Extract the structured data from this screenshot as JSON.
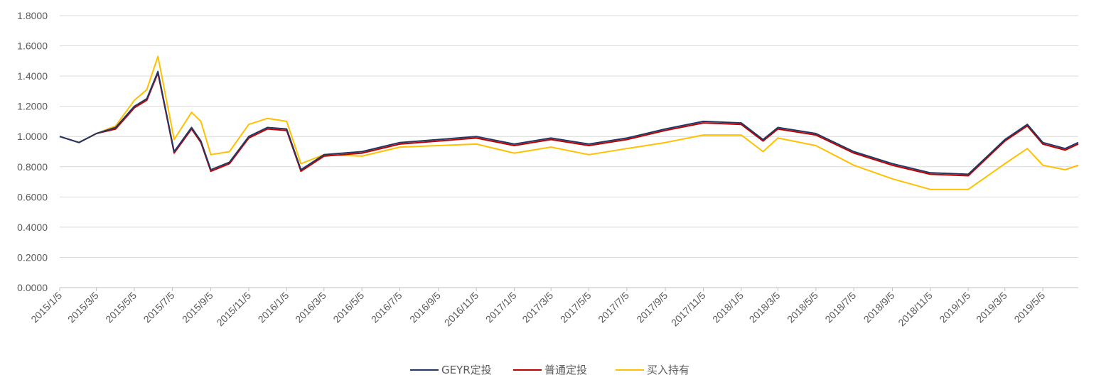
{
  "chart_data": {
    "type": "line",
    "title": "",
    "xlabel": "",
    "ylabel": "",
    "ylim": [
      0,
      1.8
    ],
    "yticks": [
      "0.0000",
      "0.2000",
      "0.4000",
      "0.6000",
      "0.8000",
      "1.0000",
      "1.2000",
      "1.4000",
      "1.6000",
      "1.8000"
    ],
    "categories": [
      "2015/1/5",
      "2015/3/5",
      "2015/5/5",
      "2015/7/5",
      "2015/9/5",
      "2015/11/5",
      "2016/1/5",
      "2016/3/5",
      "2016/5/5",
      "2016/7/5",
      "2016/9/5",
      "2016/11/5",
      "2017/1/5",
      "2017/3/5",
      "2017/5/5",
      "2017/7/5",
      "2017/9/5",
      "2017/11/5",
      "2018/1/5",
      "2018/3/5",
      "2018/5/5",
      "2018/7/5",
      "2018/9/5",
      "2018/11/5",
      "2019/1/5",
      "2019/3/5",
      "2019/5/5"
    ],
    "grid": true,
    "legend_position": "bottom",
    "series": [
      {
        "name": "GEYR定投",
        "color": "#203864",
        "x": [
          "2015/1/5",
          "2015/2/5",
          "2015/3/5",
          "2015/4/5",
          "2015/5/5",
          "2015/5/25",
          "2015/6/12",
          "2015/7/8",
          "2015/8/5",
          "2015/8/20",
          "2015/9/5",
          "2015/10/5",
          "2015/11/5",
          "2015/12/5",
          "2016/1/5",
          "2016/1/28",
          "2016/3/5",
          "2016/5/5",
          "2016/7/5",
          "2016/9/5",
          "2016/11/5",
          "2017/1/5",
          "2017/3/5",
          "2017/5/5",
          "2017/7/5",
          "2017/9/5",
          "2017/11/5",
          "2018/1/5",
          "2018/2/9",
          "2018/3/5",
          "2018/5/5",
          "2018/7/5",
          "2018/9/5",
          "2018/11/5",
          "2019/1/5",
          "2019/3/5",
          "2019/4/10",
          "2019/5/5",
          "2019/6/10",
          "2019/7/1"
        ],
        "values": [
          1.0,
          0.96,
          1.02,
          1.06,
          1.2,
          1.25,
          1.43,
          0.9,
          1.06,
          0.97,
          0.78,
          0.83,
          1.0,
          1.06,
          1.05,
          0.78,
          0.88,
          0.9,
          0.96,
          0.98,
          1.0,
          0.95,
          0.99,
          0.95,
          0.99,
          1.05,
          1.1,
          1.09,
          0.98,
          1.06,
          1.02,
          0.9,
          0.82,
          0.76,
          0.75,
          0.98,
          1.08,
          0.96,
          0.92,
          0.96
        ]
      },
      {
        "name": "普通定投",
        "color": "#C00000",
        "x": [
          "2015/1/5",
          "2015/2/5",
          "2015/3/5",
          "2015/4/5",
          "2015/5/5",
          "2015/5/25",
          "2015/6/12",
          "2015/7/8",
          "2015/8/5",
          "2015/8/20",
          "2015/9/5",
          "2015/10/5",
          "2015/11/5",
          "2015/12/5",
          "2016/1/5",
          "2016/1/28",
          "2016/3/5",
          "2016/5/5",
          "2016/7/5",
          "2016/9/5",
          "2016/11/5",
          "2017/1/5",
          "2017/3/5",
          "2017/5/5",
          "2017/7/5",
          "2017/9/5",
          "2017/11/5",
          "2018/1/5",
          "2018/2/9",
          "2018/3/5",
          "2018/5/5",
          "2018/7/5",
          "2018/9/5",
          "2018/11/5",
          "2019/1/5",
          "2019/3/5",
          "2019/4/10",
          "2019/5/5",
          "2019/6/10",
          "2019/7/1"
        ],
        "values": [
          1.0,
          0.96,
          1.02,
          1.05,
          1.19,
          1.24,
          1.42,
          0.89,
          1.05,
          0.96,
          0.77,
          0.82,
          0.99,
          1.05,
          1.04,
          0.77,
          0.87,
          0.89,
          0.95,
          0.97,
          0.99,
          0.94,
          0.98,
          0.94,
          0.98,
          1.04,
          1.09,
          1.08,
          0.97,
          1.05,
          1.01,
          0.89,
          0.81,
          0.75,
          0.74,
          0.97,
          1.07,
          0.95,
          0.91,
          0.95
        ]
      },
      {
        "name": "买入持有",
        "color": "#FFC000",
        "x": [
          "2015/1/5",
          "2015/2/5",
          "2015/3/5",
          "2015/4/5",
          "2015/5/5",
          "2015/5/25",
          "2015/6/12",
          "2015/7/8",
          "2015/8/5",
          "2015/8/20",
          "2015/9/5",
          "2015/10/5",
          "2015/11/5",
          "2015/12/5",
          "2016/1/5",
          "2016/1/28",
          "2016/3/5",
          "2016/5/5",
          "2016/7/5",
          "2016/9/5",
          "2016/11/5",
          "2017/1/5",
          "2017/3/5",
          "2017/5/5",
          "2017/7/5",
          "2017/9/5",
          "2017/11/5",
          "2018/1/5",
          "2018/2/9",
          "2018/3/5",
          "2018/5/5",
          "2018/7/5",
          "2018/9/5",
          "2018/11/5",
          "2019/1/5",
          "2019/3/5",
          "2019/4/10",
          "2019/5/5",
          "2019/6/10",
          "2019/7/1"
        ],
        "values": [
          1.0,
          0.96,
          1.02,
          1.07,
          1.24,
          1.31,
          1.53,
          0.98,
          1.16,
          1.1,
          0.88,
          0.9,
          1.08,
          1.12,
          1.1,
          0.82,
          0.88,
          0.87,
          0.93,
          0.94,
          0.95,
          0.89,
          0.93,
          0.88,
          0.92,
          0.96,
          1.01,
          1.01,
          0.9,
          0.99,
          0.94,
          0.81,
          0.72,
          0.65,
          0.65,
          0.82,
          0.92,
          0.81,
          0.78,
          0.81
        ]
      }
    ]
  }
}
